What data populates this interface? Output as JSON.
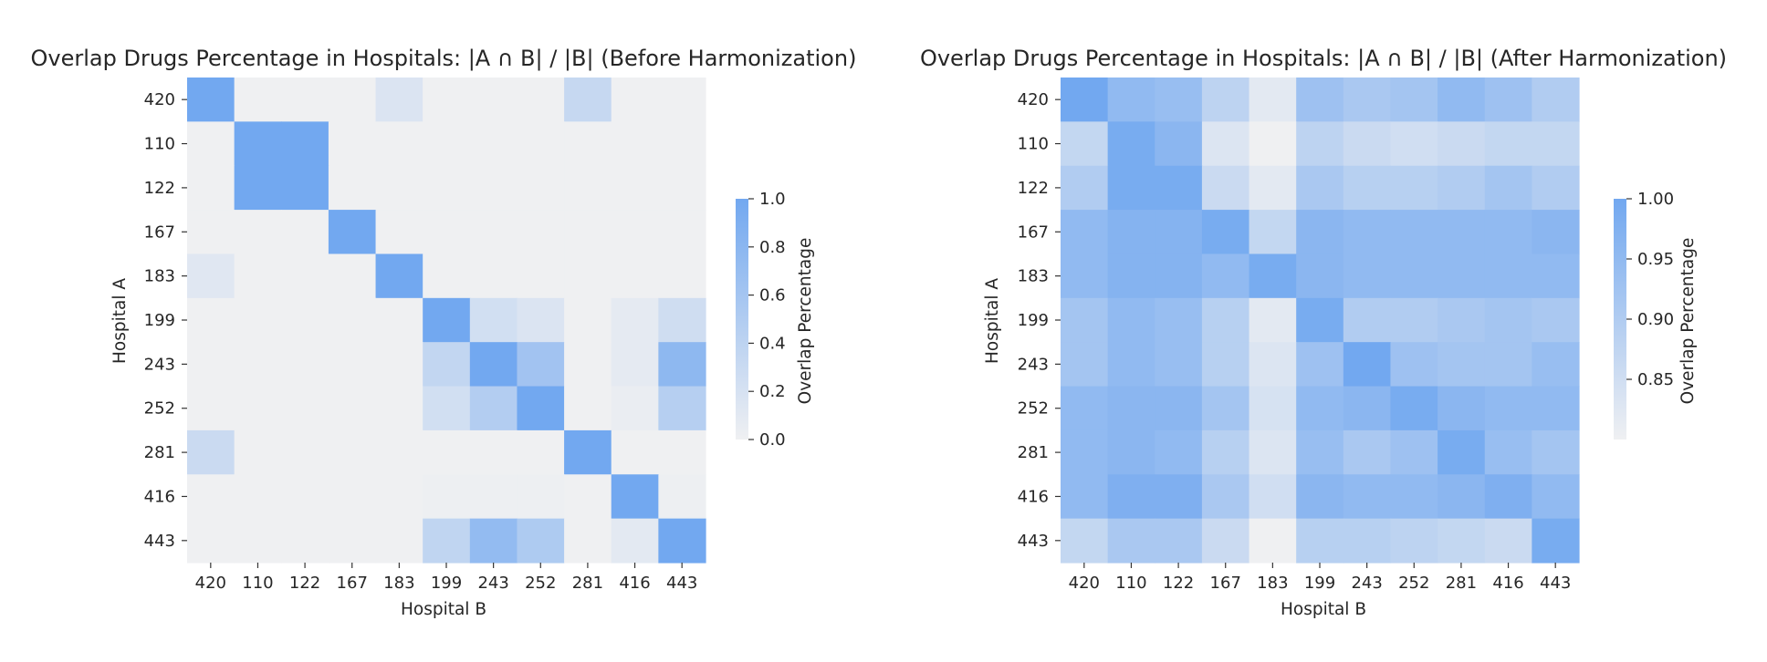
{
  "chart_data": [
    {
      "type": "heatmap",
      "title": "Overlap Drugs Percentage in Hospitals: |A ∩ B| / |B| (Before Harmonization)",
      "xlabel": "Hospital B",
      "ylabel": "Hospital A",
      "x_categories": [
        "420",
        "110",
        "122",
        "167",
        "183",
        "199",
        "243",
        "252",
        "281",
        "416",
        "443"
      ],
      "y_categories": [
        "420",
        "110",
        "122",
        "167",
        "183",
        "199",
        "243",
        "252",
        "281",
        "416",
        "443"
      ],
      "colorbar": {
        "label": "Overlap Percentage",
        "range": [
          0.0,
          1.0
        ],
        "ticks": [
          0.0,
          0.2,
          0.4,
          0.6,
          0.8,
          1.0
        ],
        "tick_labels": [
          "0.0",
          "0.2",
          "0.4",
          "0.6",
          "0.8",
          "1.0"
        ]
      },
      "values": [
        [
          1.0,
          0.0,
          0.0,
          0.0,
          0.16,
          0.0,
          0.0,
          0.0,
          0.33,
          0.0,
          0.0
        ],
        [
          0.0,
          1.0,
          1.0,
          0.0,
          0.0,
          0.0,
          0.0,
          0.0,
          0.0,
          0.0,
          0.0
        ],
        [
          0.0,
          1.0,
          1.0,
          0.0,
          0.0,
          0.0,
          0.0,
          0.0,
          0.0,
          0.0,
          0.0
        ],
        [
          0.0,
          0.0,
          0.0,
          1.0,
          0.0,
          0.0,
          0.0,
          0.0,
          0.0,
          0.0,
          0.0
        ],
        [
          0.12,
          0.0,
          0.0,
          0.0,
          1.0,
          0.0,
          0.0,
          0.0,
          0.0,
          0.0,
          0.0
        ],
        [
          0.0,
          0.0,
          0.0,
          0.0,
          0.0,
          1.0,
          0.24,
          0.16,
          0.0,
          0.08,
          0.26
        ],
        [
          0.0,
          0.0,
          0.0,
          0.0,
          0.0,
          0.36,
          1.0,
          0.62,
          0.0,
          0.08,
          0.78
        ],
        [
          0.0,
          0.0,
          0.0,
          0.0,
          0.0,
          0.24,
          0.48,
          1.0,
          0.0,
          0.04,
          0.46
        ],
        [
          0.3,
          0.0,
          0.0,
          0.0,
          0.0,
          0.0,
          0.0,
          0.0,
          1.0,
          0.0,
          0.0
        ],
        [
          0.0,
          0.0,
          0.0,
          0.0,
          0.0,
          0.02,
          0.02,
          0.02,
          0.0,
          1.0,
          0.02
        ],
        [
          0.0,
          0.0,
          0.0,
          0.0,
          0.0,
          0.38,
          0.74,
          0.52,
          0.0,
          0.1,
          1.0
        ]
      ]
    },
    {
      "type": "heatmap",
      "title": "Overlap Drugs Percentage in Hospitals: |A ∩ B| / |B| (After Harmonization)",
      "xlabel": "Hospital B",
      "ylabel": "Hospital A",
      "x_categories": [
        "420",
        "110",
        "122",
        "167",
        "183",
        "199",
        "243",
        "252",
        "281",
        "416",
        "443"
      ],
      "y_categories": [
        "420",
        "110",
        "122",
        "167",
        "183",
        "199",
        "243",
        "252",
        "281",
        "416",
        "443"
      ],
      "colorbar": {
        "label": "Overlap Percentage",
        "range": [
          0.8,
          1.0
        ],
        "ticks": [
          0.85,
          0.9,
          0.95,
          1.0
        ],
        "tick_labels": [
          "0.85",
          "0.90",
          "0.95",
          "1.00"
        ]
      },
      "values": [
        [
          1.0,
          0.95,
          0.94,
          0.88,
          0.82,
          0.93,
          0.91,
          0.92,
          0.95,
          0.93,
          0.9
        ],
        [
          0.87,
          0.99,
          0.96,
          0.83,
          0.8,
          0.88,
          0.86,
          0.85,
          0.86,
          0.87,
          0.87
        ],
        [
          0.9,
          0.99,
          0.99,
          0.86,
          0.82,
          0.91,
          0.89,
          0.89,
          0.9,
          0.92,
          0.9
        ],
        [
          0.95,
          0.97,
          0.97,
          0.99,
          0.87,
          0.96,
          0.95,
          0.95,
          0.95,
          0.95,
          0.96
        ],
        [
          0.95,
          0.97,
          0.97,
          0.95,
          0.99,
          0.96,
          0.95,
          0.95,
          0.95,
          0.95,
          0.95
        ],
        [
          0.92,
          0.95,
          0.94,
          0.89,
          0.82,
          0.99,
          0.9,
          0.9,
          0.91,
          0.92,
          0.91
        ],
        [
          0.92,
          0.95,
          0.94,
          0.89,
          0.83,
          0.93,
          1.0,
          0.93,
          0.92,
          0.92,
          0.94
        ],
        [
          0.95,
          0.96,
          0.96,
          0.92,
          0.84,
          0.95,
          0.96,
          0.99,
          0.96,
          0.95,
          0.95
        ],
        [
          0.95,
          0.96,
          0.95,
          0.89,
          0.83,
          0.94,
          0.91,
          0.93,
          0.99,
          0.94,
          0.92
        ],
        [
          0.95,
          0.98,
          0.98,
          0.91,
          0.85,
          0.96,
          0.95,
          0.95,
          0.96,
          0.98,
          0.95
        ],
        [
          0.87,
          0.91,
          0.91,
          0.86,
          0.8,
          0.89,
          0.89,
          0.88,
          0.87,
          0.86,
          0.99
        ]
      ]
    }
  ]
}
